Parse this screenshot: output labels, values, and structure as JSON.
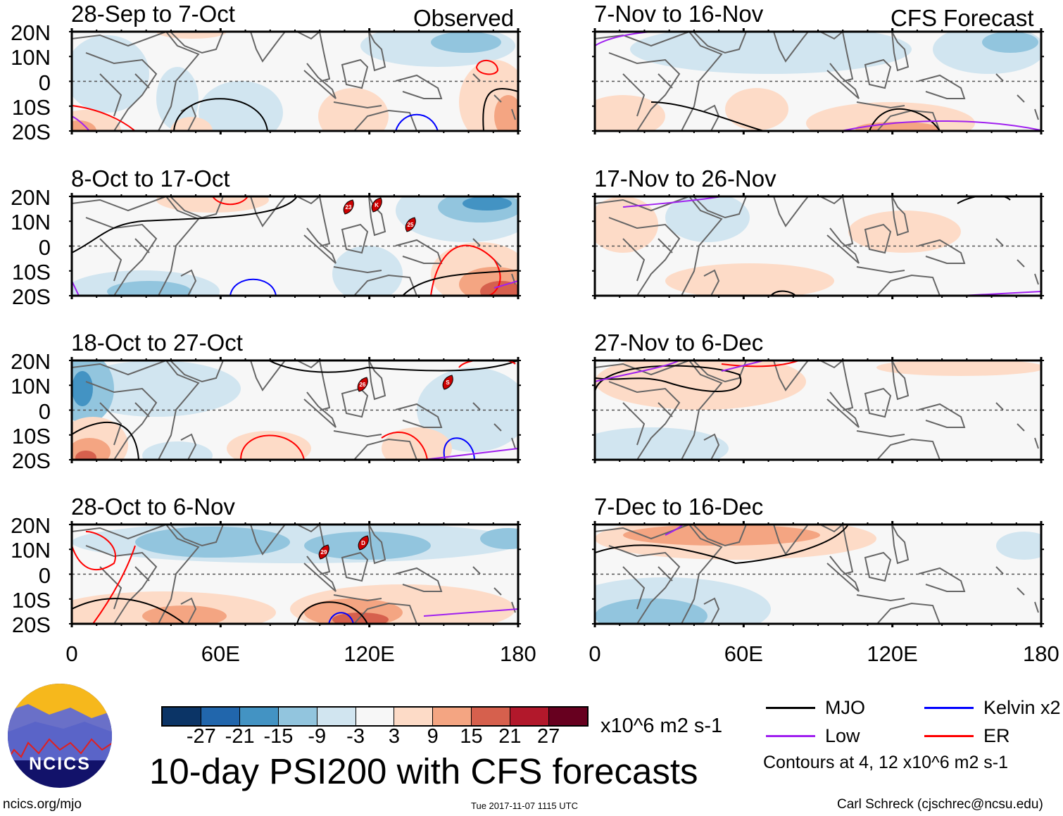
{
  "header": {
    "left_label": "Observed",
    "right_label": "CFS Forecast"
  },
  "panels": {
    "observed": [
      {
        "title": "28-Sep to 7-Oct",
        "markers": []
      },
      {
        "title": "8-Oct to 17-Oct",
        "markers": [
          "23",
          "K",
          "25"
        ]
      },
      {
        "title": "18-Oct to 27-Oct",
        "markers": [
          "26",
          "S"
        ]
      },
      {
        "title": "28-Oct to 6-Nov",
        "markers": [
          "29",
          "D"
        ]
      }
    ],
    "forecast": [
      {
        "title": "7-Nov to 16-Nov"
      },
      {
        "title": "17-Nov to 26-Nov"
      },
      {
        "title": "27-Nov to 6-Dec"
      },
      {
        "title": "7-Dec to 16-Dec"
      }
    ]
  },
  "axes": {
    "lat_labels": [
      "20N",
      "10N",
      "0",
      "10S",
      "20S"
    ],
    "lon_labels": [
      "0",
      "60E",
      "120E",
      "180"
    ]
  },
  "colorbar": {
    "colors": [
      "#0b3466",
      "#2166ac",
      "#4393c3",
      "#92c5de",
      "#d1e5f0",
      "#f7f7f7",
      "#fddbc7",
      "#f4a582",
      "#d6604d",
      "#b2182b",
      "#67001f"
    ],
    "ticks": [
      "-27",
      "-21",
      "-15",
      "-9",
      "-3",
      "3",
      "9",
      "15",
      "21",
      "27"
    ],
    "units": "x10^6 m2 s-1"
  },
  "legend": {
    "items": [
      {
        "label": "MJO",
        "color": "#000000"
      },
      {
        "label": "Kelvin x2",
        "color": "#0000ff"
      },
      {
        "label": "Low",
        "color": "#a020f0"
      },
      {
        "label": "ER",
        "color": "#ff0000"
      }
    ],
    "contour_note": "Contours at 4, 12 x10^6 m2 s-1"
  },
  "title": "10-day PSI200 with CFS forecasts",
  "logo_text": "NCICS",
  "footer": {
    "url": "ncics.org/mjo",
    "timestamp": "Tue 2017-11-07 1115 UTC",
    "author": "Carl Schreck (cjschrec@ncsu.edu)"
  }
}
